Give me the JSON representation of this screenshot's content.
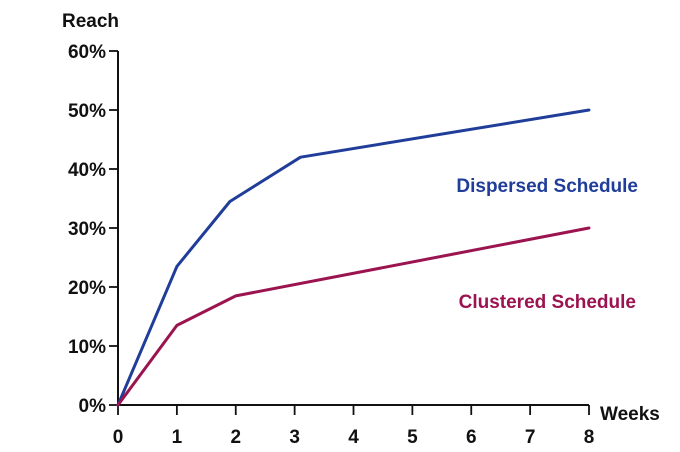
{
  "chart_data": {
    "type": "line",
    "ylabel": "Reach",
    "xlabel": "Weeks",
    "x": [
      0,
      1,
      2,
      3,
      4,
      5,
      6,
      7,
      8
    ],
    "x_ticks": [
      "0",
      "1",
      "2",
      "3",
      "4",
      "5",
      "6",
      "7",
      "8"
    ],
    "y_ticks": [
      "0%",
      "10%",
      "20%",
      "30%",
      "40%",
      "50%",
      "60%"
    ],
    "xlim": [
      0,
      8
    ],
    "ylim": [
      0,
      60
    ],
    "grid": false,
    "series": [
      {
        "name": "Dispersed Schedule",
        "color": "#1f3d99",
        "points": [
          [
            0,
            0
          ],
          [
            1,
            23.5
          ],
          [
            1.9,
            34.5
          ],
          [
            3.1,
            42
          ],
          [
            8,
            50
          ]
        ]
      },
      {
        "name": "Clustered Schedule",
        "color": "#9b1450",
        "points": [
          [
            0,
            0
          ],
          [
            1,
            13.5
          ],
          [
            2,
            18.5
          ],
          [
            8,
            30
          ]
        ]
      }
    ]
  }
}
